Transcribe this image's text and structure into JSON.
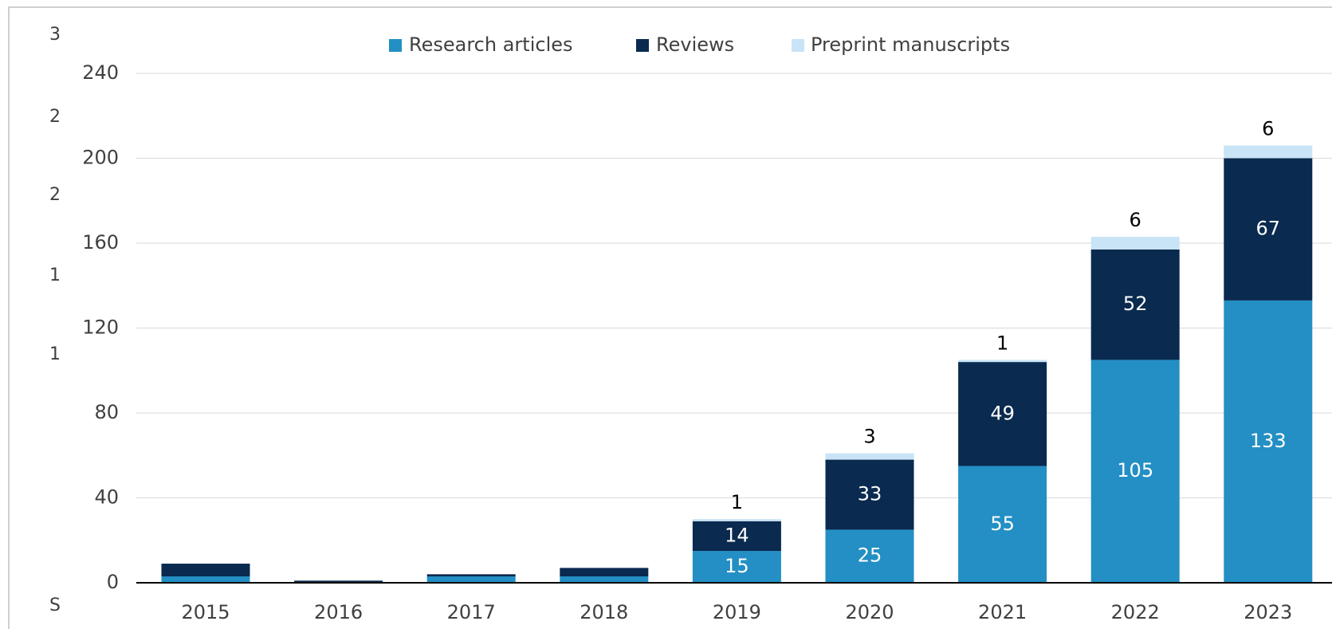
{
  "chart_data": {
    "type": "stacked_bar",
    "categories": [
      "2015",
      "2016",
      "2017",
      "2018",
      "2019",
      "2020",
      "2021",
      "2022",
      "2023"
    ],
    "series": [
      {
        "name": "Research articles",
        "color": "#238fc4",
        "values": [
          3,
          0,
          3,
          3,
          15,
          25,
          55,
          105,
          133
        ],
        "value_labels": [
          null,
          null,
          null,
          null,
          "15",
          "25",
          "55",
          "105",
          "133"
        ]
      },
      {
        "name": "Reviews",
        "color": "#0a2a4f",
        "values": [
          6,
          1,
          1,
          4,
          14,
          33,
          49,
          52,
          67
        ],
        "value_labels": [
          null,
          null,
          null,
          null,
          "14",
          "33",
          "49",
          "52",
          "67"
        ]
      },
      {
        "name": "Preprint manuscripts",
        "color": "#c9e4f6",
        "values": [
          0,
          0,
          0,
          0,
          1,
          3,
          1,
          6,
          6
        ],
        "value_labels": [
          null,
          null,
          null,
          null,
          "1",
          "3",
          "1",
          "6",
          "6"
        ]
      }
    ],
    "ylim": [
      0,
      240
    ],
    "yticks": [
      0,
      40,
      80,
      120,
      160,
      200,
      240
    ],
    "grid": true,
    "edge_fragments": [
      "3",
      "2",
      "2",
      "1",
      "1",
      "S"
    ]
  }
}
